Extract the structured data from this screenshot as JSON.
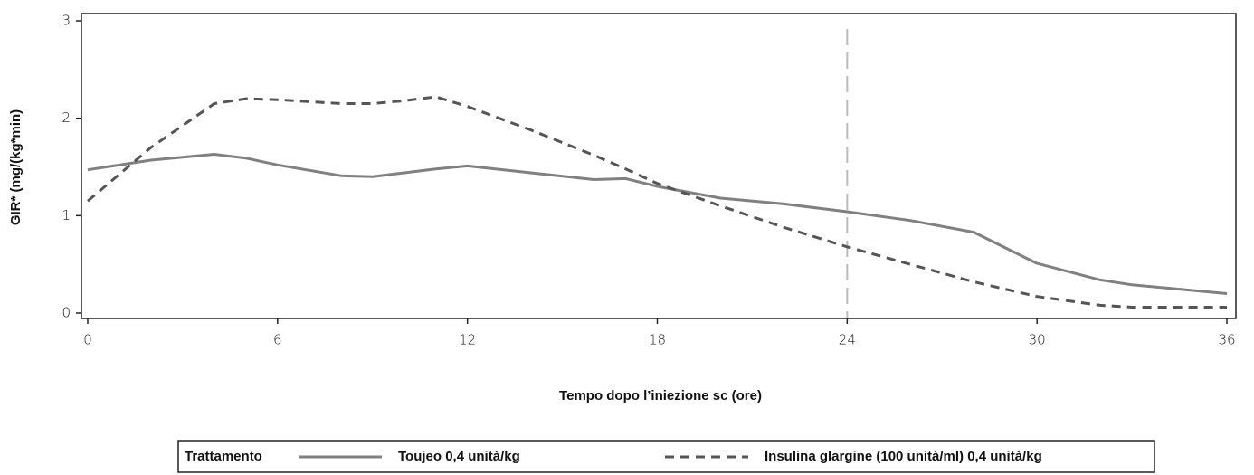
{
  "chart_data": {
    "type": "line",
    "x_label": "Tempo dopo l’iniezione sc (ore)",
    "y_label": "GIR*  (mg/(kg*min)",
    "x": [
      0,
      2,
      4,
      5,
      6,
      8,
      9,
      10,
      11,
      12,
      14,
      16,
      17,
      18,
      20,
      22,
      24,
      26,
      28,
      30,
      32,
      33,
      34,
      36
    ],
    "series": [
      {
        "name": "Toujeo 0,4 unità/kg",
        "color": "#808080",
        "dash": false,
        "values": [
          1.47,
          1.57,
          1.63,
          1.59,
          1.52,
          1.41,
          1.4,
          1.44,
          1.48,
          1.51,
          1.44,
          1.37,
          1.38,
          1.3,
          1.18,
          1.12,
          1.04,
          0.95,
          0.83,
          0.51,
          0.34,
          0.29,
          0.26,
          0.2
        ]
      },
      {
        "name": "Insulina glargine (100 unità/ml) 0,4 unità/kg",
        "color": "#555555",
        "dash": true,
        "values": [
          1.15,
          1.7,
          2.15,
          2.2,
          2.19,
          2.15,
          2.15,
          2.18,
          2.22,
          2.12,
          1.88,
          1.62,
          1.48,
          1.33,
          1.1,
          0.88,
          0.68,
          0.5,
          0.32,
          0.17,
          0.08,
          0.06,
          0.06,
          0.06
        ]
      }
    ],
    "legend_title": "Trattamento",
    "xlim": [
      0,
      36
    ],
    "xticks": [
      0,
      6,
      12,
      18,
      24,
      30,
      36
    ],
    "ylim": [
      0,
      3
    ],
    "yticks": [
      0,
      1,
      2,
      3
    ],
    "vline": 24,
    "vline_color": "#bbbbbb",
    "grid": false
  }
}
